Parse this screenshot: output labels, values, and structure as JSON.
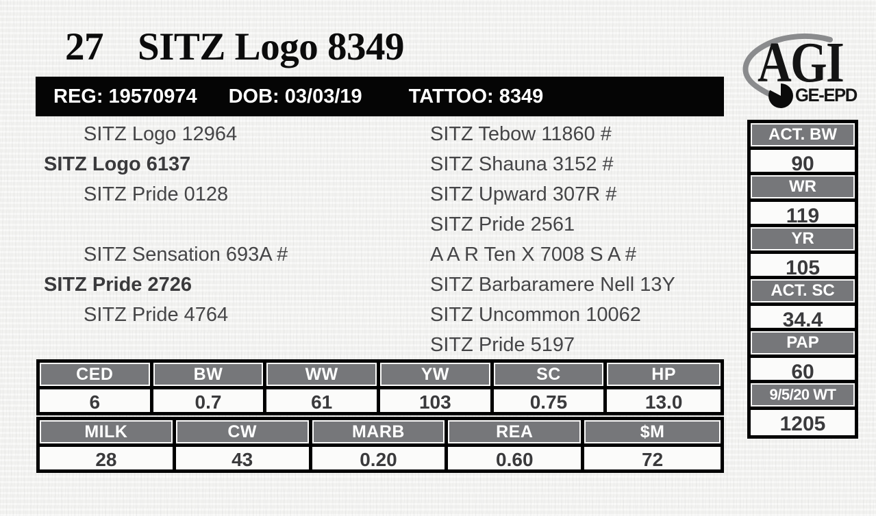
{
  "lot": {
    "number": "27",
    "name": "SITZ Logo 8349"
  },
  "info_bar": {
    "reg": "REG: 19570974",
    "dob": "DOB: 03/03/19",
    "tattoo": "TATTOO: 8349"
  },
  "logo": {
    "name": "AGI",
    "badge": "GE-EPD"
  },
  "pedigree": {
    "left": [
      {
        "text": "SITZ Logo 12964",
        "bold": false,
        "row": 0
      },
      {
        "text": "SITZ Logo 6137",
        "bold": true,
        "row": 1
      },
      {
        "text": "SITZ Pride 0128",
        "bold": false,
        "row": 2
      },
      {
        "text": "SITZ Sensation 693A #",
        "bold": false,
        "row": 4
      },
      {
        "text": "SITZ Pride 2726",
        "bold": true,
        "row": 5
      },
      {
        "text": "SITZ Pride 4764",
        "bold": false,
        "row": 6
      }
    ],
    "right": [
      {
        "text": "SITZ Tebow 11860 #",
        "row": 0
      },
      {
        "text": "SITZ Shauna 3152 #",
        "row": 1
      },
      {
        "text": "SITZ Upward 307R #",
        "row": 2
      },
      {
        "text": "SITZ Pride 2561",
        "row": 3
      },
      {
        "text": "A A R Ten X 7008 S A #",
        "row": 4
      },
      {
        "text": "SITZ Barbaramere Nell 13Y",
        "row": 5
      },
      {
        "text": "SITZ Uncommon 10062",
        "row": 6
      },
      {
        "text": "SITZ Pride 5197",
        "row": 7
      }
    ]
  },
  "epd_tables": [
    {
      "headers": [
        "CED",
        "BW",
        "WW",
        "YW",
        "SC",
        "HP"
      ],
      "values": [
        "6",
        "0.7",
        "61",
        "103",
        "0.75",
        "13.0"
      ]
    },
    {
      "headers": [
        "MILK",
        "CW",
        "MARB",
        "REA",
        "$M"
      ],
      "values": [
        "28",
        "43",
        "0.20",
        "0.60",
        "72"
      ]
    }
  ],
  "performance_panel": [
    {
      "label": "ACT. BW",
      "value": "90"
    },
    {
      "label": "WR",
      "value": "119"
    },
    {
      "label": "YR",
      "value": "105"
    },
    {
      "label": "ACT. SC",
      "value": "34.4"
    },
    {
      "label": "PAP",
      "value": "60"
    },
    {
      "label": "9/5/20 WT",
      "value": "1205"
    }
  ],
  "colors": {
    "header_gray": "#76777a",
    "bar_black": "#050505",
    "text_dark": "#454547",
    "paper": "#f2f2f0"
  }
}
